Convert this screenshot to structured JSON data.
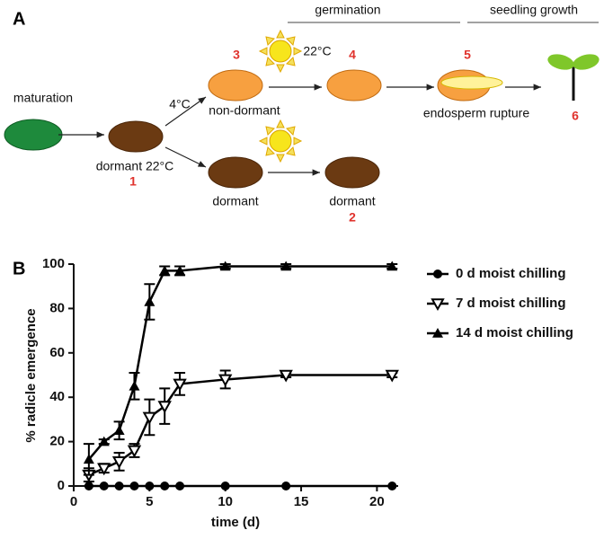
{
  "panel_labels": [
    "A",
    "B"
  ],
  "diagram": {
    "phases": [
      "germination",
      "seedling growth"
    ],
    "labels": [
      "maturation",
      "4°C",
      "non-dormant",
      "dormant 22°C",
      "dormant",
      "dormant",
      "22°C",
      "endosperm rupture"
    ],
    "numbers": [
      "1",
      "2",
      "3",
      "4",
      "5",
      "6"
    ]
  },
  "chart_data": {
    "type": "line",
    "x_label": "time (d)",
    "y_label": "% radicle emergence",
    "x": [
      1,
      2,
      3,
      4,
      5,
      6,
      7,
      10,
      14,
      21
    ],
    "xlim": [
      0,
      21.4
    ],
    "xticks": [
      0,
      5,
      10,
      15,
      20
    ],
    "ylim": [
      0,
      100
    ],
    "yticks": [
      0,
      20,
      40,
      60,
      80,
      100
    ],
    "legend": "right",
    "series": [
      {
        "name": "0 d moist chilling",
        "color": "#000000",
        "marker": "circle",
        "values": [
          0,
          0,
          0,
          0,
          0,
          0,
          0,
          0,
          0,
          0
        ]
      },
      {
        "name": "7 d moist chilling",
        "color": "#000000",
        "marker": "triangle-down",
        "values": [
          5,
          8,
          11,
          16,
          31,
          36,
          46,
          48,
          50,
          50
        ],
        "errors": [
          3,
          2,
          4,
          3,
          8,
          8,
          5,
          4,
          1,
          1
        ]
      },
      {
        "name": "14 d moist chilling",
        "color": "#000000",
        "marker": "triangle-up",
        "values": [
          12,
          20,
          25,
          45,
          83,
          97,
          97,
          99,
          99,
          99
        ],
        "errors": [
          7,
          1,
          4,
          6,
          8,
          2,
          2,
          1,
          1,
          1
        ]
      }
    ]
  }
}
